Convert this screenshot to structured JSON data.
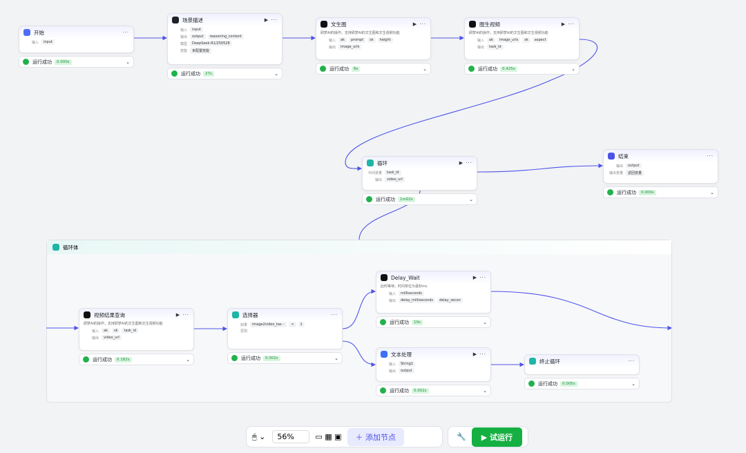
{
  "nodes": [
    {
      "title": "开始",
      "rows": [
        {
          "label": "输入",
          "tags": [
            "input"
          ]
        }
      ],
      "status": "运行成功",
      "time": "0.000s"
    },
    {
      "title": "场景描述",
      "rows": [
        {
          "label": "输入",
          "tags": [
            "input"
          ]
        },
        {
          "label": "输出",
          "tags": [
            "output",
            "reasoning_content"
          ]
        },
        {
          "label": "模型",
          "tags": [
            "DeepSeek-R1/250528"
          ]
        },
        {
          "label": "技能",
          "tags": [
            "未配置技能"
          ]
        }
      ],
      "status": "运行成功",
      "time": "27s"
    },
    {
      "title": "文生图",
      "desc": "即梦AI的操作，支持即梦AI的文生图和文生视频功能",
      "rows": [
        {
          "label": "输入",
          "tags": [
            "ak",
            "prompt",
            "sk",
            "height"
          ]
        },
        {
          "label": "输出",
          "tags": [
            "image_urls"
          ]
        }
      ],
      "status": "运行成功",
      "time": "8s"
    },
    {
      "title": "图生视频",
      "desc": "即梦AI的操作，支持即梦AI的文生图和文生视频功能",
      "rows": [
        {
          "label": "输入",
          "tags": [
            "ak",
            "image_urls",
            "sk",
            "aspect"
          ]
        },
        {
          "label": "输出",
          "tags": [
            "task_id"
          ]
        }
      ],
      "status": "运行成功",
      "time": "0.425s"
    },
    {
      "title": "循环",
      "rows": [
        {
          "label": "中间变量",
          "tags": [
            "task_id"
          ]
        },
        {
          "label": "输出",
          "tags": [
            "video_url"
          ]
        }
      ],
      "status": "运行成功",
      "time": "1m02s"
    },
    {
      "title": "结束",
      "rows": [
        {
          "label": "输出",
          "tags": [
            "output"
          ]
        },
        {
          "label": "输出变量",
          "tags": [
            "返回变量"
          ]
        }
      ],
      "status": "运行成功",
      "time": "0.000s"
    },
    {
      "title": "视频结果查询",
      "desc": "即梦AI的操作，支持即梦AI的文生图和文生视频功能",
      "rows": [
        {
          "label": "输入",
          "tags": [
            "ak",
            "sk",
            "task_id"
          ]
        },
        {
          "label": "输出",
          "tags": [
            "video_url"
          ]
        }
      ],
      "status": "运行成功",
      "time": "0.182s"
    },
    {
      "title": "选择器",
      "rows": [
        {
          "label": "如果",
          "tags": [
            "image2video_tas···",
            "<",
            "1"
          ]
        },
        {
          "label": "否则",
          "tags": []
        }
      ],
      "status": "运行成功",
      "time": "0.002s"
    },
    {
      "title": "Delay_Wait",
      "desc": "此时等待，时间单位为毫秒ms",
      "rows": [
        {
          "label": "输入",
          "tags": [
            "milliseconds"
          ]
        },
        {
          "label": "输出",
          "tags": [
            "delay_milliseconds",
            "delay_secon"
          ]
        }
      ],
      "status": "运行成功",
      "time": "10s"
    },
    {
      "title": "文本处理",
      "rows": [
        {
          "label": "输入",
          "tags": [
            "String1"
          ]
        },
        {
          "label": "输出",
          "tags": [
            "output"
          ]
        }
      ],
      "status": "运行成功",
      "time": "0.002s"
    },
    {
      "title": "终止循环",
      "rows": [],
      "status": "运行成功",
      "time": "0.005s"
    }
  ],
  "loop_body": {
    "title": "循环体"
  },
  "toolbar": {
    "zoom": "56%",
    "add_node": "添加节点",
    "test_run": "试运行"
  }
}
